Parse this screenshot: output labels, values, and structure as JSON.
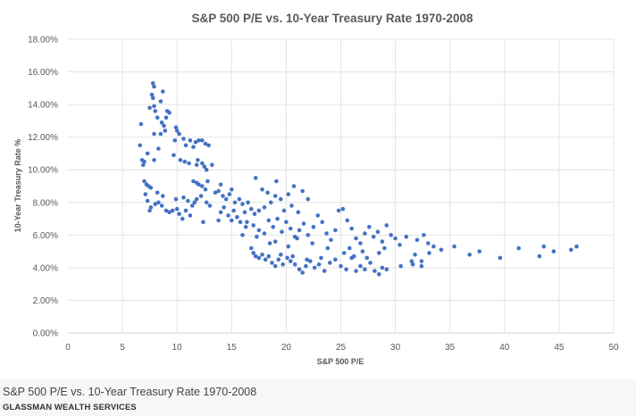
{
  "chart_data": {
    "type": "scatter",
    "title": "S&P 500 P/E vs. 10-Year Treasury Rate 1970-2008",
    "xlabel": "S&P 500 P/E",
    "ylabel": "10-Year Treasury Rate %",
    "xlim": [
      0,
      50
    ],
    "ylim": [
      0,
      18
    ],
    "x_ticks": [
      "0",
      "5",
      "10",
      "15",
      "20",
      "25",
      "30",
      "35",
      "40",
      "45",
      "50"
    ],
    "y_ticks": [
      "0.00%",
      "2.00%",
      "4.00%",
      "6.00%",
      "8.00%",
      "10.00%",
      "12.00%",
      "14.00%",
      "16.00%",
      "18.00%"
    ],
    "grid": true,
    "color": "#4472C4",
    "points": [
      [
        7.8,
        15.3
      ],
      [
        7.9,
        15.1
      ],
      [
        8.7,
        14.8
      ],
      [
        7.7,
        14.6
      ],
      [
        7.8,
        14.4
      ],
      [
        8.5,
        14.2
      ],
      [
        7.5,
        13.8
      ],
      [
        7.9,
        13.9
      ],
      [
        8.0,
        13.6
      ],
      [
        8.2,
        13.2
      ],
      [
        9.1,
        13.6
      ],
      [
        9.3,
        13.5
      ],
      [
        9.0,
        13.2
      ],
      [
        8.6,
        12.9
      ],
      [
        8.8,
        12.7
      ],
      [
        8.9,
        12.4
      ],
      [
        8.5,
        12.2
      ],
      [
        7.9,
        12.2
      ],
      [
        6.7,
        12.8
      ],
      [
        9.9,
        12.6
      ],
      [
        10.0,
        12.4
      ],
      [
        10.2,
        12.2
      ],
      [
        9.8,
        11.8
      ],
      [
        10.6,
        11.9
      ],
      [
        11.2,
        11.8
      ],
      [
        11.7,
        11.7
      ],
      [
        12.0,
        11.8
      ],
      [
        12.3,
        11.8
      ],
      [
        12.6,
        11.6
      ],
      [
        12.9,
        11.5
      ],
      [
        11.5,
        11.4
      ],
      [
        10.8,
        11.5
      ],
      [
        6.6,
        11.5
      ],
      [
        7.3,
        11.0
      ],
      [
        7.9,
        10.6
      ],
      [
        8.3,
        11.3
      ],
      [
        9.7,
        10.9
      ],
      [
        10.3,
        10.6
      ],
      [
        10.7,
        10.5
      ],
      [
        11.1,
        10.4
      ],
      [
        11.8,
        10.3
      ],
      [
        12.3,
        10.4
      ],
      [
        12.5,
        10.2
      ],
      [
        11.9,
        10.6
      ],
      [
        12.7,
        10.0
      ],
      [
        13.2,
        10.3
      ],
      [
        6.9,
        10.3
      ],
      [
        7.0,
        10.5
      ],
      [
        6.8,
        10.6
      ],
      [
        7.0,
        9.3
      ],
      [
        7.2,
        9.1
      ],
      [
        7.4,
        9.0
      ],
      [
        7.6,
        8.9
      ],
      [
        7.1,
        8.5
      ],
      [
        8.2,
        8.6
      ],
      [
        8.7,
        8.4
      ],
      [
        7.3,
        8.1
      ],
      [
        7.6,
        7.7
      ],
      [
        7.5,
        7.5
      ],
      [
        8.0,
        7.9
      ],
      [
        8.3,
        8.0
      ],
      [
        8.6,
        7.8
      ],
      [
        9.0,
        7.5
      ],
      [
        9.3,
        7.4
      ],
      [
        9.6,
        7.5
      ],
      [
        10.0,
        7.6
      ],
      [
        10.2,
        7.3
      ],
      [
        10.5,
        7.0
      ],
      [
        10.8,
        7.5
      ],
      [
        11.2,
        7.2
      ],
      [
        11.4,
        7.8
      ],
      [
        11.6,
        8.0
      ],
      [
        11.0,
        8.1
      ],
      [
        10.6,
        8.3
      ],
      [
        9.9,
        8.2
      ],
      [
        11.8,
        8.2
      ],
      [
        12.2,
        8.4
      ],
      [
        12.7,
        8.0
      ],
      [
        13.0,
        7.8
      ],
      [
        13.5,
        8.6
      ],
      [
        12.0,
        9.1
      ],
      [
        11.5,
        9.3
      ],
      [
        11.8,
        9.2
      ],
      [
        12.3,
        9.0
      ],
      [
        12.6,
        8.8
      ],
      [
        12.8,
        9.3
      ],
      [
        13.8,
        8.7
      ],
      [
        14.0,
        9.1
      ],
      [
        14.2,
        8.4
      ],
      [
        14.5,
        8.2
      ],
      [
        14.8,
        8.5
      ],
      [
        15.0,
        8.8
      ],
      [
        15.3,
        8.0
      ],
      [
        15.7,
        8.2
      ],
      [
        16.0,
        7.9
      ],
      [
        16.5,
        8.0
      ],
      [
        14.3,
        7.7
      ],
      [
        14.0,
        7.4
      ],
      [
        14.7,
        7.2
      ],
      [
        15.2,
        7.5
      ],
      [
        15.5,
        7.1
      ],
      [
        16.2,
        7.4
      ],
      [
        16.8,
        7.6
      ],
      [
        17.1,
        7.3
      ],
      [
        17.5,
        7.5
      ],
      [
        16.4,
        6.8
      ],
      [
        15.8,
        6.8
      ],
      [
        15.0,
        6.9
      ],
      [
        13.8,
        6.9
      ],
      [
        12.4,
        6.8
      ],
      [
        17.2,
        9.5
      ],
      [
        19.1,
        9.3
      ],
      [
        17.8,
        8.8
      ],
      [
        18.3,
        8.6
      ],
      [
        19.0,
        8.4
      ],
      [
        19.5,
        8.2
      ],
      [
        20.2,
        8.5
      ],
      [
        20.7,
        9.0
      ],
      [
        21.5,
        8.7
      ],
      [
        22.0,
        8.2
      ],
      [
        18.6,
        8.0
      ],
      [
        18.0,
        7.7
      ],
      [
        19.8,
        7.5
      ],
      [
        20.5,
        7.8
      ],
      [
        21.1,
        7.4
      ],
      [
        17.0,
        6.6
      ],
      [
        17.5,
        6.3
      ],
      [
        18.0,
        6.1
      ],
      [
        18.4,
        6.9
      ],
      [
        18.8,
        6.5
      ],
      [
        19.2,
        7.0
      ],
      [
        19.6,
        6.2
      ],
      [
        20.0,
        6.8
      ],
      [
        20.4,
        6.4
      ],
      [
        20.8,
        5.9
      ],
      [
        21.2,
        6.3
      ],
      [
        21.6,
        6.7
      ],
      [
        22.0,
        6.0
      ],
      [
        22.5,
        6.5
      ],
      [
        22.9,
        7.2
      ],
      [
        23.3,
        6.8
      ],
      [
        23.7,
        6.1
      ],
      [
        24.1,
        5.7
      ],
      [
        24.5,
        6.3
      ],
      [
        24.8,
        7.5
      ],
      [
        25.2,
        7.6
      ],
      [
        25.6,
        6.9
      ],
      [
        26.0,
        6.4
      ],
      [
        26.4,
        5.8
      ],
      [
        26.8,
        5.5
      ],
      [
        27.2,
        6.1
      ],
      [
        27.6,
        6.5
      ],
      [
        28.0,
        5.9
      ],
      [
        28.4,
        6.2
      ],
      [
        28.8,
        5.6
      ],
      [
        29.2,
        6.6
      ],
      [
        29.6,
        6.0
      ],
      [
        30.0,
        5.8
      ],
      [
        30.4,
        5.4
      ],
      [
        31.0,
        5.9
      ],
      [
        32.0,
        5.7
      ],
      [
        32.6,
        6.0
      ],
      [
        33.0,
        5.5
      ],
      [
        33.5,
        5.3
      ],
      [
        34.2,
        5.1
      ],
      [
        35.4,
        5.3
      ],
      [
        36.8,
        4.8
      ],
      [
        37.7,
        5.0
      ],
      [
        39.6,
        4.6
      ],
      [
        41.3,
        5.2
      ],
      [
        43.2,
        4.7
      ],
      [
        43.6,
        5.3
      ],
      [
        44.5,
        5.0
      ],
      [
        46.1,
        5.1
      ],
      [
        46.6,
        5.3
      ],
      [
        25.8,
        5.2
      ],
      [
        27.0,
        5.0
      ],
      [
        26.2,
        4.7
      ],
      [
        28.5,
        4.9
      ],
      [
        29.0,
        5.2
      ],
      [
        31.5,
        4.4
      ],
      [
        31.8,
        4.8
      ],
      [
        32.4,
        4.4
      ],
      [
        33.1,
        4.9
      ],
      [
        19.0,
        5.6
      ],
      [
        18.5,
        5.5
      ],
      [
        20.2,
        5.3
      ],
      [
        21.0,
        5.8
      ],
      [
        22.4,
        5.5
      ],
      [
        23.8,
        5.2
      ],
      [
        16.3,
        6.5
      ],
      [
        16.0,
        6.0
      ],
      [
        17.3,
        5.9
      ],
      [
        16.8,
        5.2
      ],
      [
        17.0,
        4.9
      ],
      [
        17.2,
        4.7
      ],
      [
        17.5,
        4.6
      ],
      [
        17.8,
        4.8
      ],
      [
        18.1,
        4.5
      ],
      [
        18.4,
        4.7
      ],
      [
        18.7,
        4.3
      ],
      [
        19.0,
        4.1
      ],
      [
        19.3,
        4.5
      ],
      [
        19.7,
        4.2
      ],
      [
        20.1,
        4.6
      ],
      [
        20.4,
        4.4
      ],
      [
        20.8,
        4.2
      ],
      [
        21.2,
        3.9
      ],
      [
        21.5,
        3.7
      ],
      [
        21.8,
        4.1
      ],
      [
        22.2,
        4.4
      ],
      [
        22.6,
        4.0
      ],
      [
        23.0,
        4.2
      ],
      [
        23.5,
        3.8
      ],
      [
        24.0,
        4.3
      ],
      [
        24.5,
        4.5
      ],
      [
        25.0,
        4.1
      ],
      [
        25.5,
        3.9
      ],
      [
        26.0,
        4.6
      ],
      [
        26.4,
        3.8
      ],
      [
        26.8,
        4.1
      ],
      [
        27.2,
        3.9
      ],
      [
        27.7,
        4.3
      ],
      [
        28.1,
        3.8
      ],
      [
        28.5,
        3.6
      ],
      [
        28.8,
        4.0
      ],
      [
        29.2,
        3.9
      ],
      [
        19.5,
        4.8
      ],
      [
        20.6,
        4.7
      ],
      [
        21.9,
        4.5
      ],
      [
        23.2,
        4.6
      ],
      [
        25.3,
        4.9
      ],
      [
        27.4,
        4.6
      ],
      [
        30.5,
        4.1
      ],
      [
        31.6,
        4.2
      ],
      [
        32.4,
        4.1
      ]
    ]
  },
  "caption": {
    "title": "S&P 500 P/E vs. 10-Year Treasury Rate 1970-2008",
    "source": "GLASSMAN WEALTH SERVICES"
  }
}
